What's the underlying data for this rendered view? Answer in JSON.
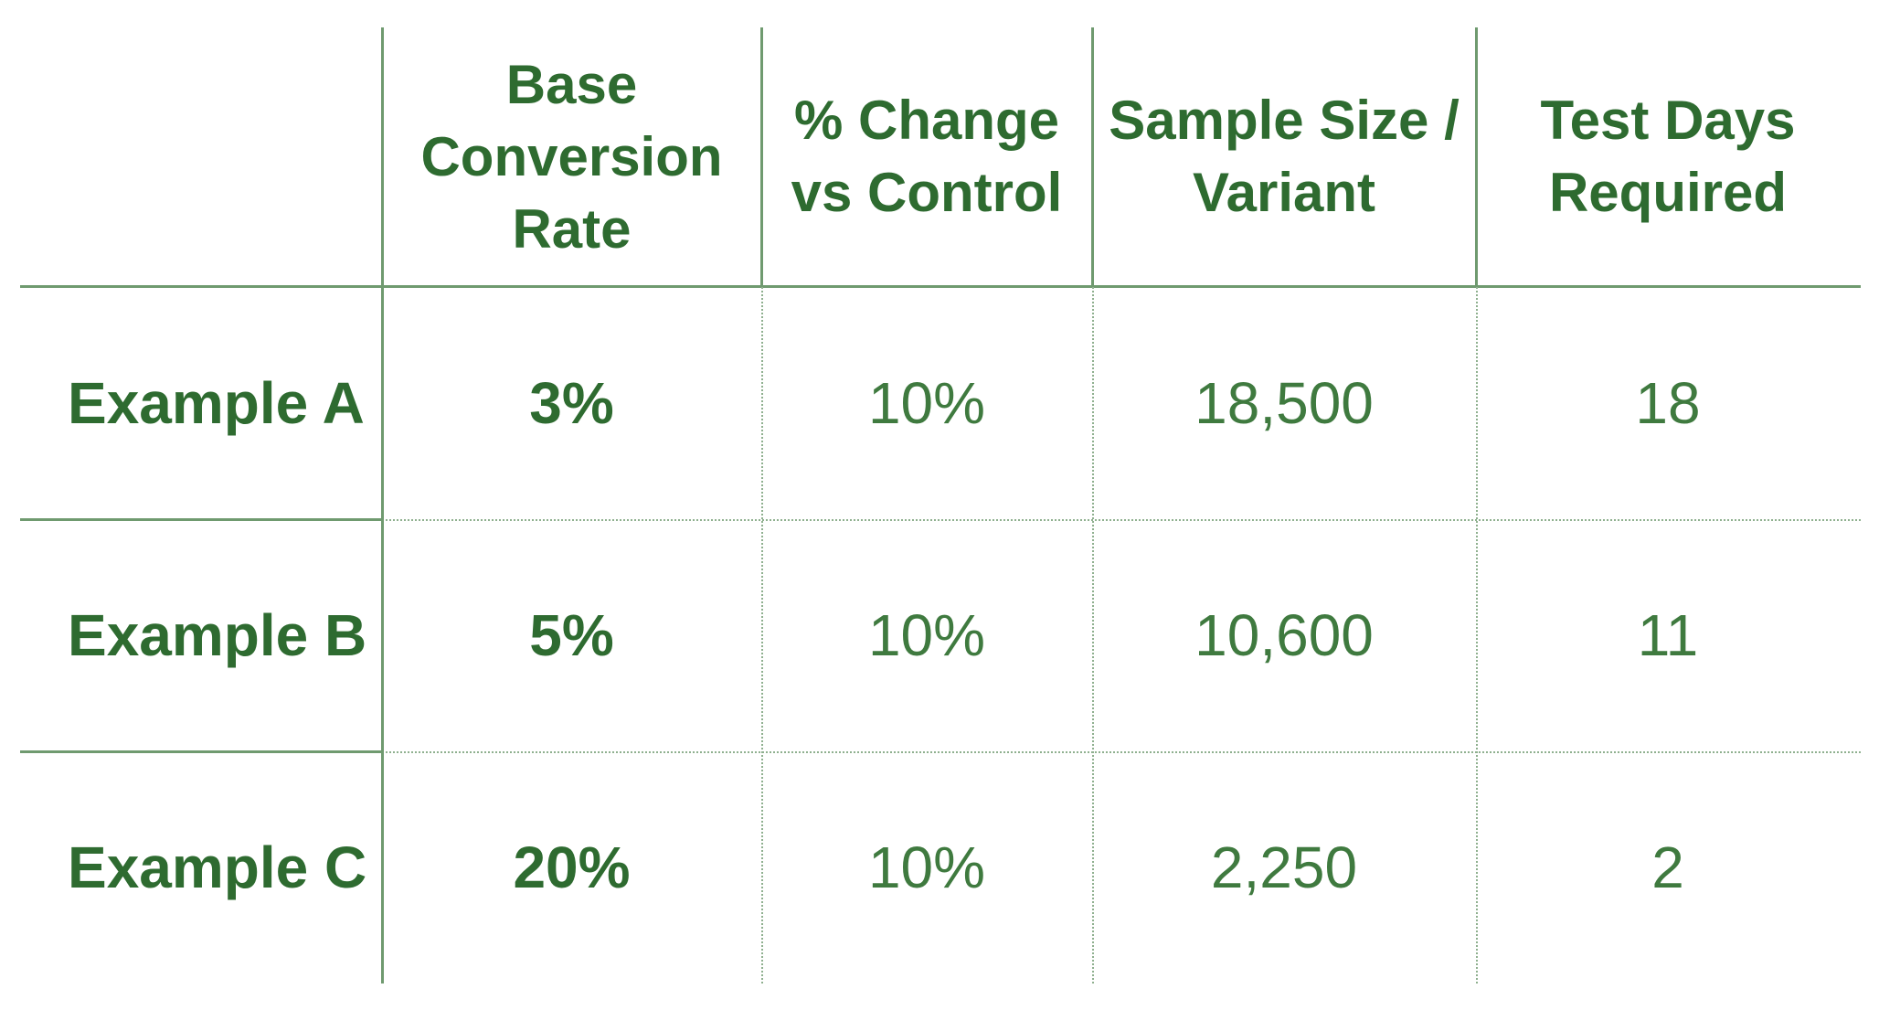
{
  "headers": [
    "",
    "Base Conversion Rate",
    "% Change vs Control",
    "Sample Size / Variant",
    "Test Days Required"
  ],
  "rows": [
    {
      "label": "Example A",
      "base_rate": "3%",
      "change": "10%",
      "sample_size": "18,500",
      "test_days": "18"
    },
    {
      "label": "Example B",
      "base_rate": "5%",
      "change": "10%",
      "sample_size": "10,600",
      "test_days": "11"
    },
    {
      "label": "Example C",
      "base_rate": "20%",
      "change": "10%",
      "sample_size": "2,250",
      "test_days": "2"
    }
  ],
  "colors": {
    "text": "#2e6b30",
    "rule": "#6f9a6f"
  }
}
